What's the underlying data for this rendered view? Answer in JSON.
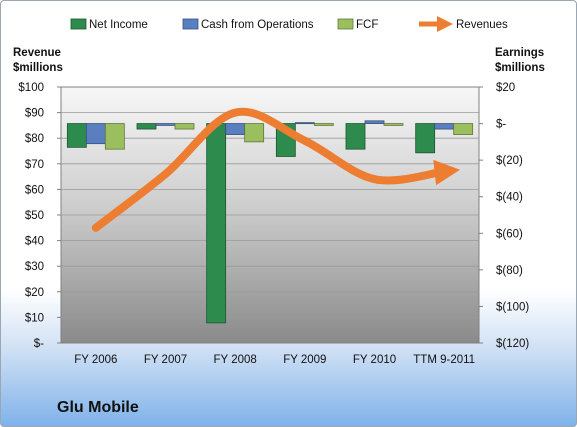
{
  "chart_data": {
    "type": "bar",
    "categories": [
      "FY 2006",
      "FY 2007",
      "FY 2008",
      "FY 2009",
      "FY 2010",
      "TTM 9-2011"
    ],
    "left_axis": {
      "label_line1": "Revenue",
      "label_line2": "$millions",
      "ylim": [
        0,
        100
      ],
      "step": 10,
      "tick_labels": [
        "$-",
        "$10",
        "$20",
        "$30",
        "$40",
        "$50",
        "$60",
        "$70",
        "$80",
        "$90",
        "$100"
      ]
    },
    "right_axis": {
      "label_line1": "Earnings",
      "label_line2": "$millions",
      "ylim": [
        -120,
        20
      ],
      "step": 20,
      "tick_labels": [
        "$(120)",
        "$(100)",
        "$(80)",
        "$(60)",
        "$(40)",
        "$(20)",
        "$-",
        "$20"
      ]
    },
    "series": [
      {
        "name": "Net Income",
        "kind": "bar",
        "axis": "right",
        "color": "#2e8b4e",
        "values": [
          -13,
          -3,
          -109,
          -18,
          -14,
          -16
        ]
      },
      {
        "name": "Cash from Operations",
        "kind": "bar",
        "axis": "right",
        "color": "#5a7fc0",
        "values": [
          -11,
          -1,
          -6,
          0.5,
          1.5,
          -3
        ]
      },
      {
        "name": "FCF",
        "kind": "bar",
        "axis": "right",
        "color": "#9bbf5e",
        "values": [
          -14,
          -3,
          -10,
          -1,
          -1,
          -6
        ]
      },
      {
        "name": "Revenues",
        "kind": "line",
        "axis": "left",
        "color": "#ed7d31",
        "values": [
          45,
          66,
          90,
          79,
          64,
          67
        ]
      }
    ],
    "legend_position": "top",
    "grid": true
  },
  "company_name": "Glu Mobile"
}
